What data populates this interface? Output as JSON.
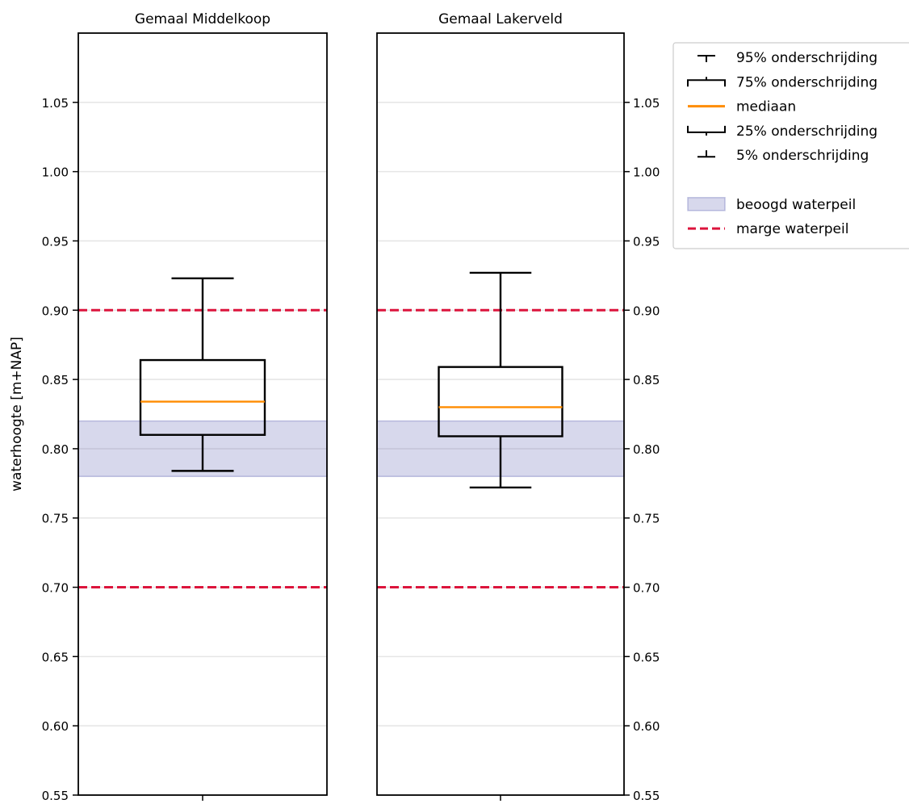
{
  "chart_data": {
    "type": "box",
    "ylabel": "waterhoogte [m+NAP]",
    "ylim": [
      0.55,
      1.1
    ],
    "yticks": [
      "0.55",
      "0.60",
      "0.65",
      "0.70",
      "0.75",
      "0.80",
      "0.85",
      "0.90",
      "0.95",
      "1.00",
      "1.05"
    ],
    "grid": true,
    "panels": [
      {
        "title": "Gemaal Middelkoop",
        "p5": 0.784,
        "p25": 0.81,
        "median": 0.834,
        "p75": 0.864,
        "p95": 0.923
      },
      {
        "title": "Gemaal Lakerveld",
        "p5": 0.772,
        "p25": 0.809,
        "median": 0.83,
        "p75": 0.859,
        "p95": 0.927
      }
    ],
    "target_band": [
      0.78,
      0.82
    ],
    "margin_lines": [
      0.7,
      0.9
    ],
    "colors": {
      "median": "#ff8c00",
      "margin": "#dc143c",
      "band": "#7b7fc1",
      "grid": "#e6e6e6"
    },
    "legend": {
      "position": "outside-top-right",
      "items": [
        {
          "label": "95% onderschrijding",
          "symbol": "whisker-top"
        },
        {
          "label": "75% onderschrijding",
          "symbol": "box-top"
        },
        {
          "label": "mediaan",
          "symbol": "median"
        },
        {
          "label": "25% onderschrijding",
          "symbol": "box-bottom"
        },
        {
          "label": "5% onderschrijding",
          "symbol": "whisker-bottom"
        },
        {
          "label": "",
          "symbol": "spacer"
        },
        {
          "label": "beoogd waterpeil",
          "symbol": "band"
        },
        {
          "label": "marge waterpeil",
          "symbol": "dashed"
        }
      ]
    }
  }
}
